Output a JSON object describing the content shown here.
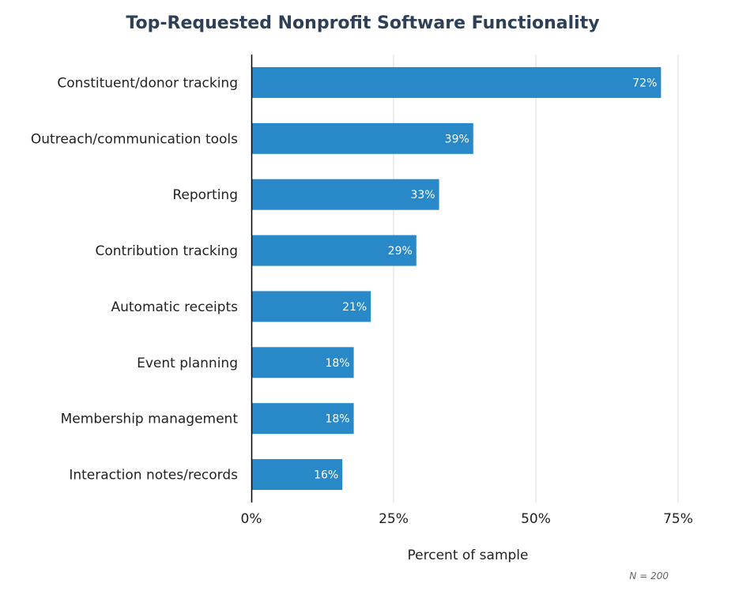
{
  "chart_data": {
    "type": "bar",
    "orientation": "horizontal",
    "title": "Top-Requested Nonprofit Software Functionality",
    "xlabel": "Percent of sample",
    "ylabel": "",
    "categories": [
      "Constituent/donor tracking",
      "Outreach/communication tools",
      "Reporting",
      "Contribution tracking",
      "Automatic receipts",
      "Event planning",
      "Membership management",
      "Interaction notes/records"
    ],
    "values": [
      72,
      39,
      33,
      29,
      21,
      18,
      18,
      16
    ],
    "value_labels": [
      "72%",
      "39%",
      "33%",
      "29%",
      "21%",
      "18%",
      "18%",
      "16%"
    ],
    "xlim": [
      0,
      75
    ],
    "ticks": [
      0,
      25,
      50,
      75
    ],
    "tick_labels": [
      "0%",
      "25%",
      "50%",
      "75%"
    ],
    "grid": true,
    "legend": "none",
    "note": "N = 200",
    "colors": {
      "bar": "#2888c8",
      "grid": "#d9d9d9",
      "axis": "#000000",
      "title": "#2e4057"
    }
  }
}
